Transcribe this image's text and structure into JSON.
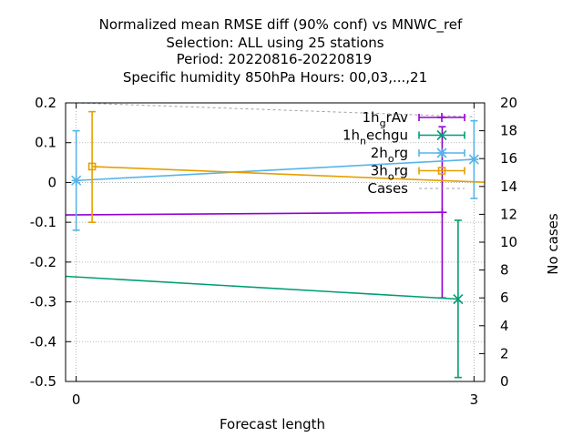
{
  "chart_data": {
    "type": "line",
    "title_lines": [
      "Normalized mean RMSE diff (90% conf) vs MNWC_ref",
      "Selection: ALL using    25 stations",
      "Period: 20220816-20220819",
      "Specific humidity 850hPa   Hours:  00,03,...,21"
    ],
    "xlabel": "Forecast length",
    "ylabel_right": "No cases",
    "xlim": [
      -0.08,
      3.08
    ],
    "ylim": [
      -0.5,
      0.2
    ],
    "ylim_right": [
      0,
      20
    ],
    "x_ticks": [
      0,
      3
    ],
    "y_ticks": [
      0.2,
      0.1,
      0,
      -0.1,
      -0.2,
      -0.3,
      -0.4,
      -0.5
    ],
    "y_tick_labels": [
      "0.2",
      "0.1",
      "0",
      "-0.1",
      "-0.2",
      "-0.3",
      "-0.4",
      "-0.5"
    ],
    "y2_ticks": [
      20,
      18,
      16,
      14,
      12,
      10,
      8,
      6,
      4,
      2,
      0
    ],
    "grid": true,
    "legend_position": "top-right",
    "series": [
      {
        "name": "1h_grAv",
        "color": "#9400d3",
        "marker": "plus",
        "points": [
          {
            "x": -0.24,
            "y": -0.082,
            "lo": -0.22,
            "hi": 0.06
          },
          {
            "x": 2.76,
            "y": -0.075,
            "lo": -0.29,
            "hi": 0.14
          }
        ]
      },
      {
        "name": "1h_nechgu",
        "color": "#009e73",
        "marker": "x",
        "points": [
          {
            "x": -0.12,
            "y": -0.235,
            "lo": -0.43,
            "hi": -0.035
          },
          {
            "x": 2.88,
            "y": -0.293,
            "lo": -0.49,
            "hi": -0.095
          }
        ]
      },
      {
        "name": "2h_org",
        "color": "#56b4e9",
        "marker": "star",
        "points": [
          {
            "x": 0.0,
            "y": 0.005,
            "lo": -0.12,
            "hi": 0.13
          },
          {
            "x": 3.0,
            "y": 0.058,
            "lo": -0.04,
            "hi": 0.155
          }
        ]
      },
      {
        "name": "3h_org",
        "color": "#e69f00",
        "marker": "square",
        "points": [
          {
            "x": 0.12,
            "y": 0.04,
            "lo": -0.1,
            "hi": 0.178
          },
          {
            "x": 3.12,
            "y": 0.0,
            "lo": -0.12,
            "hi": 0.12
          }
        ]
      },
      {
        "name": "Cases",
        "color": "#a0a0a0",
        "dashed": true,
        "axis": "right",
        "points": [
          {
            "x": 0.0,
            "y": 20
          },
          {
            "x": 3.0,
            "y": 19
          }
        ]
      }
    ]
  }
}
